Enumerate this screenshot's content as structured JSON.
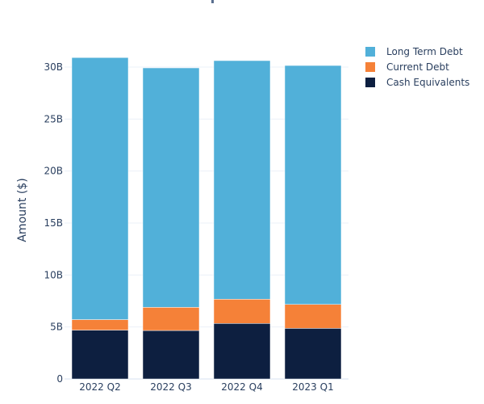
{
  "chart_data": {
    "type": "bar",
    "stacked": true,
    "title": "",
    "xlabel": "",
    "ylabel": "Amount ($)",
    "ylim": [
      0,
      32
    ],
    "yticks": [
      0,
      5,
      10,
      15,
      20,
      25,
      30
    ],
    "ytick_labels": [
      "0",
      "5B",
      "10B",
      "15B",
      "20B",
      "25B",
      "30B"
    ],
    "grid": true,
    "legend_position": "top-right",
    "categories": [
      "2022 Q2",
      "2022 Q3",
      "2022 Q4",
      "2023 Q1"
    ],
    "series": [
      {
        "name": "Cash Equivalents",
        "color": "#0d1f40",
        "values": [
          4.7,
          4.66,
          5.34,
          4.87
        ]
      },
      {
        "name": "Current Debt",
        "color": "#f58138",
        "values": [
          1.01,
          2.23,
          2.33,
          2.3
        ]
      },
      {
        "name": "Long Term Debt",
        "color": "#51b0d9",
        "values": [
          25.2,
          23.03,
          22.95,
          22.98
        ]
      }
    ],
    "legend_order": [
      "Long Term Debt",
      "Current Debt",
      "Cash Equivalents"
    ],
    "units": "billions USD"
  }
}
